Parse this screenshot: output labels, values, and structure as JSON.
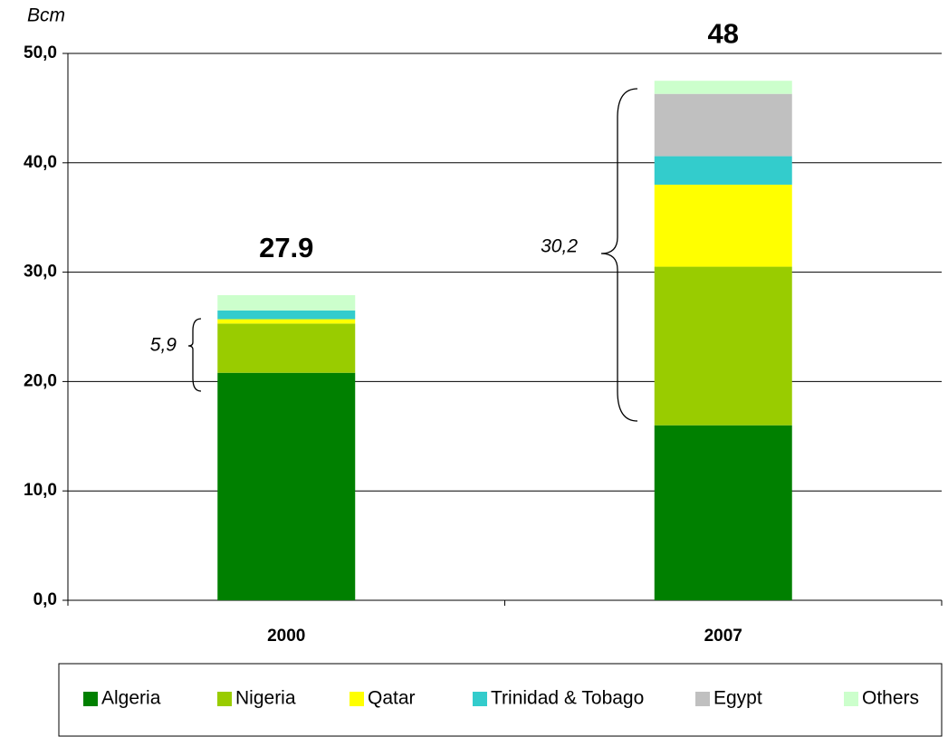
{
  "chart_data": {
    "type": "stacked_bar",
    "y_axis_label": "Bcm",
    "categories": [
      "2000",
      "2007"
    ],
    "series": [
      {
        "name": "Algeria",
        "color": "#008000",
        "values": [
          20.8,
          16.0
        ]
      },
      {
        "name": "Nigeria",
        "color": "#99cc00",
        "values": [
          4.5,
          14.5
        ]
      },
      {
        "name": "Qatar",
        "color": "#ffff00",
        "values": [
          0.4,
          7.5
        ]
      },
      {
        "name": "Trinidad & Tobago",
        "color": "#33cccc",
        "values": [
          0.8,
          2.6
        ]
      },
      {
        "name": "Egypt",
        "color": "#c0c0c0",
        "values": [
          0,
          5.7
        ]
      },
      {
        "name": "Others",
        "color": "#ccffcc",
        "values": [
          1.4,
          1.2
        ]
      }
    ],
    "total_labels": [
      "27.9",
      "48"
    ],
    "annotations": [
      "5,9",
      "30,2"
    ],
    "ylim": [
      0,
      50
    ],
    "yticks": [
      {
        "value": 0,
        "label": "0,0"
      },
      {
        "value": 10,
        "label": "10,0"
      },
      {
        "value": 20,
        "label": "20,0"
      },
      {
        "value": 30,
        "label": "30,0"
      },
      {
        "value": 40,
        "label": "40,0"
      },
      {
        "value": 50,
        "label": "50,0"
      }
    ],
    "grid": true
  }
}
